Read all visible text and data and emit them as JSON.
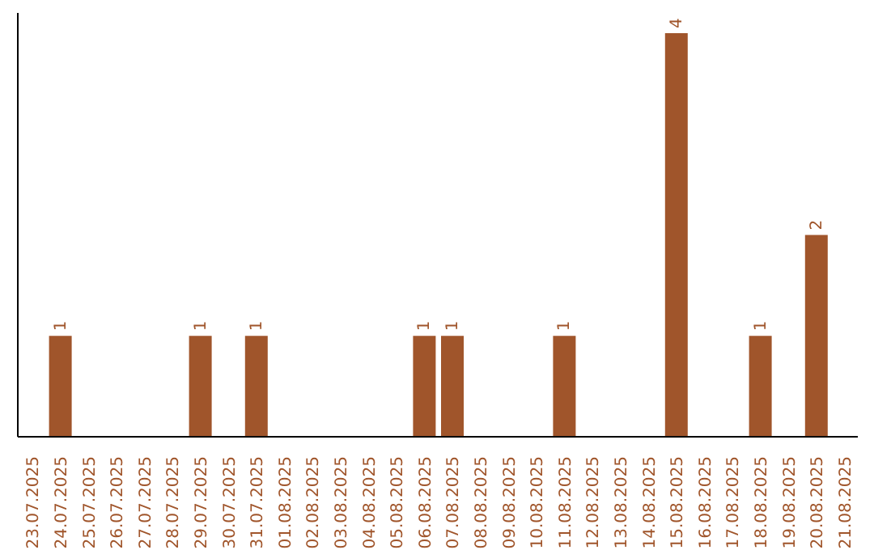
{
  "chart_data": {
    "type": "bar",
    "categories": [
      "23.07.2025",
      "24.07.2025",
      "25.07.2025",
      "26.07.2025",
      "27.07.2025",
      "28.07.2025",
      "29.07.2025",
      "30.07.2025",
      "31.07.2025",
      "01.08.2025",
      "02.08.2025",
      "03.08.2025",
      "04.08.2025",
      "05.08.2025",
      "06.08.2025",
      "07.08.2025",
      "08.08.2025",
      "09.08.2025",
      "10.08.2025",
      "11.08.2025",
      "12.08.2025",
      "13.08.2025",
      "14.08.2025",
      "15.08.2025",
      "16.08.2025",
      "17.08.2025",
      "18.08.2025",
      "19.08.2025",
      "20.08.2025",
      "21.08.2025"
    ],
    "values": [
      0,
      1,
      0,
      0,
      0,
      0,
      1,
      0,
      1,
      0,
      0,
      0,
      0,
      0,
      1,
      1,
      0,
      0,
      0,
      1,
      0,
      0,
      0,
      4,
      0,
      0,
      1,
      0,
      2,
      0
    ],
    "value_labels": [
      null,
      "1",
      null,
      null,
      null,
      null,
      "1",
      null,
      "1",
      null,
      null,
      null,
      null,
      null,
      "1",
      "1",
      null,
      null,
      null,
      "1",
      null,
      null,
      null,
      "4",
      null,
      null,
      "1",
      null,
      "2",
      null
    ],
    "color": "#a0552b",
    "ylim": [
      0,
      4.2
    ],
    "grid": false,
    "legend": false,
    "tick_labels": "x"
  }
}
